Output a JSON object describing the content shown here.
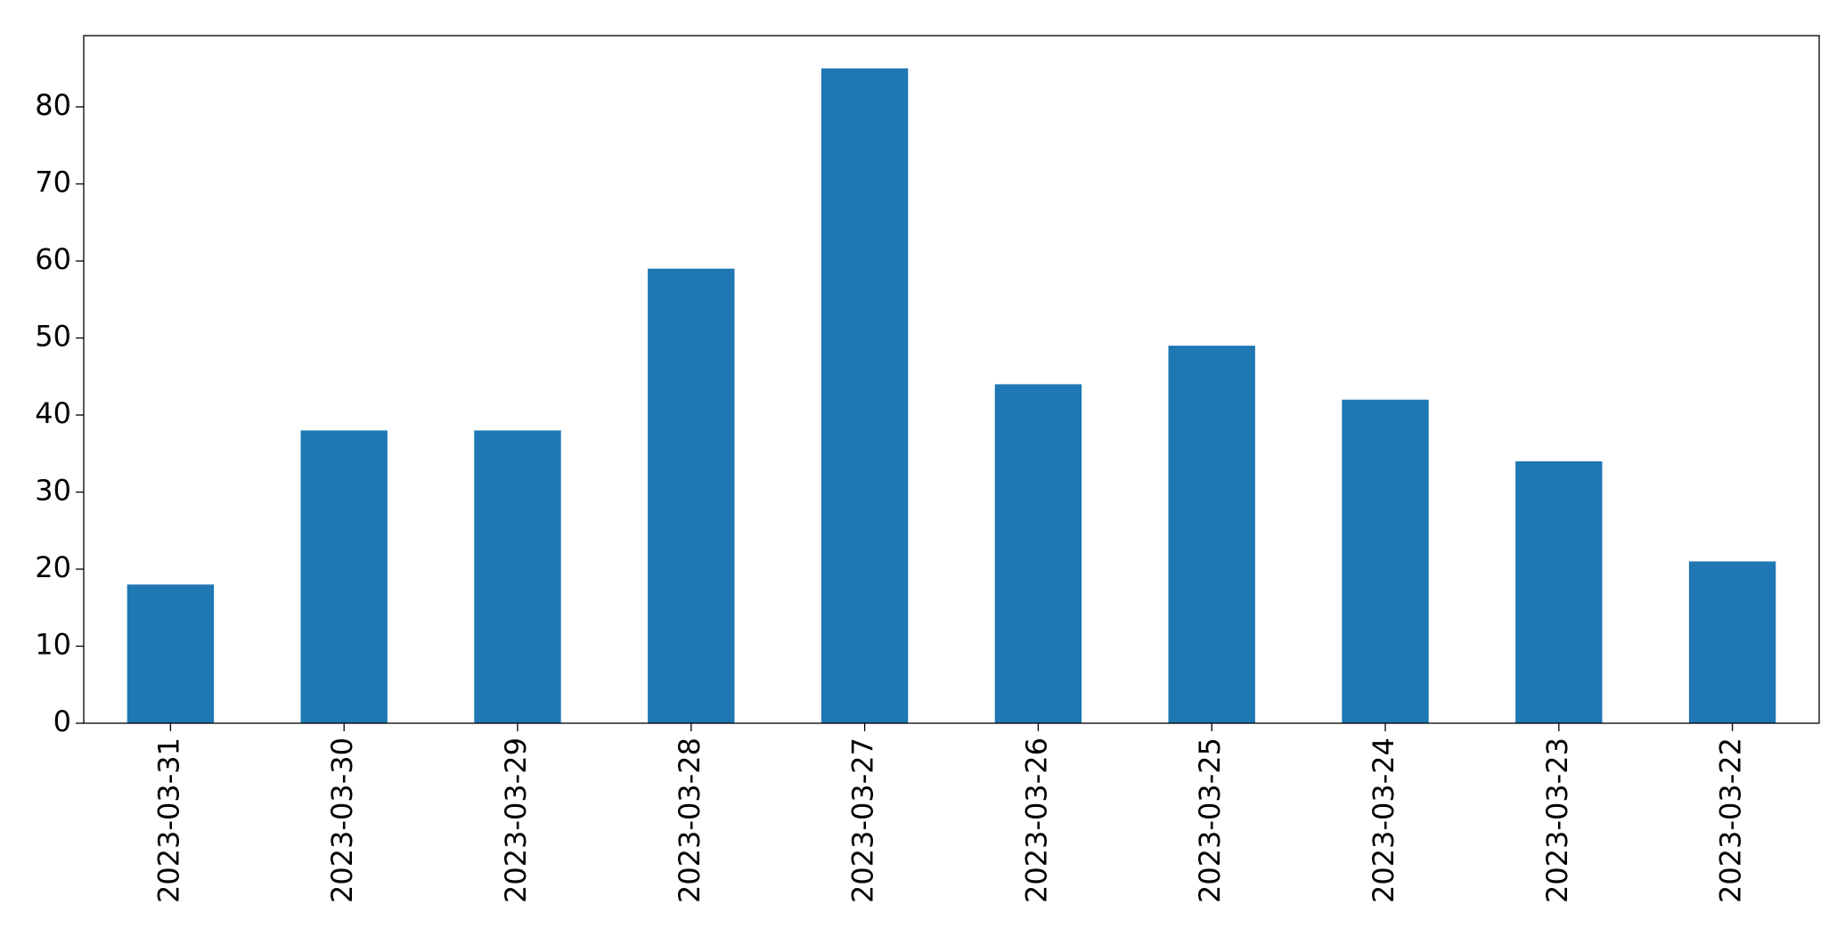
{
  "chart_data": {
    "type": "bar",
    "categories": [
      "2023-03-31",
      "2023-03-30",
      "2023-03-29",
      "2023-03-28",
      "2023-03-27",
      "2023-03-26",
      "2023-03-25",
      "2023-03-24",
      "2023-03-23",
      "2023-03-22"
    ],
    "values": [
      18,
      38,
      38,
      59,
      85,
      44,
      49,
      42,
      34,
      21
    ],
    "color": "#1f77b4",
    "ylim": [
      0,
      89.25
    ],
    "yticks": [
      0,
      10,
      20,
      30,
      40,
      50,
      60,
      70,
      80
    ],
    "grid": false
  }
}
